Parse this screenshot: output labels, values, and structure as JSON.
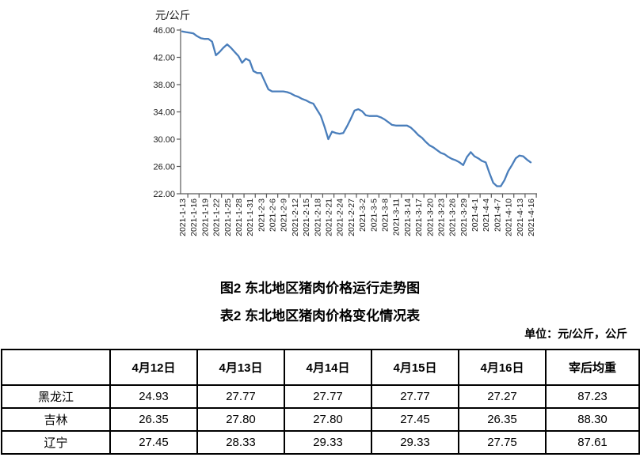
{
  "titles": {
    "figure_title": "图2 东北地区猪肉价格运行走势图",
    "table_title": "表2 东北地区猪肉价格变化情况表",
    "unit_note": "单位：元/公斤，公斤"
  },
  "chart_data": {
    "type": "line",
    "y_axis_title": "元/公斤",
    "ylim": [
      22,
      46
    ],
    "y_tick_values": [
      46,
      42,
      38,
      34,
      30,
      26,
      22
    ],
    "y_tick_labels": [
      "46.00",
      "42.00",
      "38.00",
      "34.00",
      "30.00",
      "26.00",
      "22.00"
    ],
    "x_tick_labels": [
      "2021-1-13",
      "2021-1-16",
      "2021-1-19",
      "2021-1-22",
      "2021-1-25",
      "2021-1-28",
      "2021-1-31",
      "2021-2-3",
      "2021-2-6",
      "2021-2-9",
      "2021-2-12",
      "2021-2-15",
      "2021-2-18",
      "2021-2-21",
      "2021-2-24",
      "2021-2-27",
      "2021-3-2",
      "2021-3-5",
      "2021-3-8",
      "2021-3-11",
      "2021-3-14",
      "2021-3-17",
      "2021-3-20",
      "2021-3-23",
      "2021-3-26",
      "2021-3-29",
      "2021-4-1",
      "2021-4-4",
      "2021-4-7",
      "2021-4-10",
      "2021-4-13",
      "2021-4-16"
    ],
    "points_per_tick": 3,
    "values": [
      45.8,
      45.7,
      45.6,
      45.5,
      45.1,
      44.8,
      44.7,
      44.7,
      44.3,
      42.3,
      42.8,
      43.4,
      43.9,
      43.4,
      42.8,
      42.2,
      41.2,
      41.8,
      41.5,
      40.0,
      39.7,
      39.7,
      38.5,
      37.3,
      37.0,
      37.0,
      37.0,
      37.0,
      36.9,
      36.7,
      36.4,
      36.2,
      35.9,
      35.7,
      35.4,
      35.2,
      34.3,
      33.4,
      31.8,
      30.0,
      31.1,
      30.9,
      30.8,
      30.9,
      31.9,
      33.0,
      34.2,
      34.4,
      34.1,
      33.5,
      33.4,
      33.4,
      33.4,
      33.2,
      32.9,
      32.5,
      32.1,
      32.0,
      32.0,
      32.0,
      32.0,
      31.7,
      31.2,
      30.6,
      30.2,
      29.6,
      29.1,
      28.8,
      28.4,
      28.0,
      27.8,
      27.4,
      27.1,
      26.9,
      26.6,
      26.2,
      27.4,
      28.1,
      27.5,
      27.2,
      26.8,
      26.6,
      25.0,
      23.6,
      23.1,
      23.1,
      24.0,
      25.3,
      26.2,
      27.2,
      27.6,
      27.5,
      27.0,
      26.6
    ],
    "line_color": "#4A7EBB",
    "axis_color": "#595959",
    "grid": false,
    "legend": "none"
  },
  "table": {
    "columns": [
      "",
      "4月12日",
      "4月13日",
      "4月14日",
      "4月15日",
      "4月16日",
      "宰后均重"
    ],
    "rows": [
      {
        "label": "黑龙江",
        "values": [
          "24.93",
          "27.77",
          "27.77",
          "27.77",
          "27.27",
          "87.23"
        ]
      },
      {
        "label": "吉林",
        "values": [
          "26.35",
          "27.80",
          "27.80",
          "27.45",
          "26.35",
          "88.30"
        ]
      },
      {
        "label": "辽宁",
        "values": [
          "27.45",
          "28.33",
          "29.33",
          "29.33",
          "27.75",
          "87.61"
        ]
      }
    ]
  }
}
